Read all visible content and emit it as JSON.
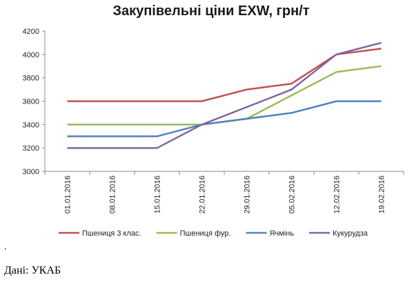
{
  "chart_data": {
    "type": "line",
    "title": "Закупівельні ціни EXW, грн/т",
    "categories": [
      "01.01.2016",
      "08.01.2016",
      "15.01.2016",
      "22.01.2016",
      "29.01.2016",
      "05.02.2016",
      "12.02.2016",
      "19.02.2016"
    ],
    "ylim": [
      3000,
      4200
    ],
    "yticks": [
      3000,
      3200,
      3400,
      3600,
      3800,
      4000,
      4200
    ],
    "grid": false,
    "legend_position": "bottom",
    "series": [
      {
        "name": "Пшениця 3 клас.",
        "color": "#c0504d",
        "values": [
          3600,
          3600,
          3600,
          3600,
          3700,
          3750,
          4000,
          4050
        ]
      },
      {
        "name": "Пшениця фур.",
        "color": "#9bbb59",
        "values": [
          3400,
          3400,
          3400,
          3400,
          3450,
          3650,
          3850,
          3900
        ]
      },
      {
        "name": "Ячмінь",
        "color": "#4f81bd",
        "values": [
          3300,
          3300,
          3300,
          3400,
          3450,
          3500,
          3600,
          3600
        ]
      },
      {
        "name": "Кукурудза",
        "color": "#8064a2",
        "values": [
          3200,
          3200,
          3200,
          3400,
          3550,
          3700,
          4000,
          4100
        ]
      }
    ]
  },
  "footer": {
    "dot": ".",
    "source": "Дані: УКАБ"
  }
}
